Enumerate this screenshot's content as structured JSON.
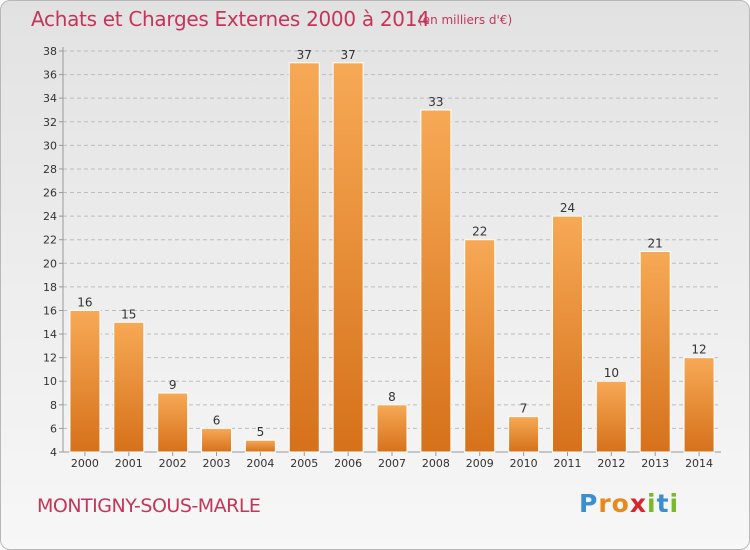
{
  "header": {
    "title": "Achats et Charges Externes 2000 à 2014",
    "unit": "(en milliers d'€)"
  },
  "footer": {
    "location": "MONTIGNY-SOUS-MARLE",
    "logo_text": "Proxiti"
  },
  "colors": {
    "title": "#c3365a",
    "bar_light": "#f5a54e",
    "bar_dark": "#d8731d",
    "grid": "#bdbdbd"
  },
  "chart_data": {
    "type": "bar",
    "title": "Achats et Charges Externes 2000 à 2014",
    "subtitle": "(en milliers d'€)",
    "categories": [
      "2000",
      "2001",
      "2002",
      "2003",
      "2004",
      "2005",
      "2006",
      "2007",
      "2008",
      "2009",
      "2010",
      "2011",
      "2012",
      "2013",
      "2014"
    ],
    "values": [
      16,
      15,
      9,
      6,
      5,
      37,
      37,
      8,
      33,
      22,
      7,
      24,
      10,
      21,
      12
    ],
    "ylim": [
      4,
      38
    ],
    "yticks": [
      4,
      6,
      8,
      10,
      12,
      14,
      16,
      18,
      20,
      22,
      24,
      26,
      28,
      30,
      32,
      34,
      36,
      38
    ],
    "grid": true,
    "data_labels": true,
    "legend": "none"
  }
}
